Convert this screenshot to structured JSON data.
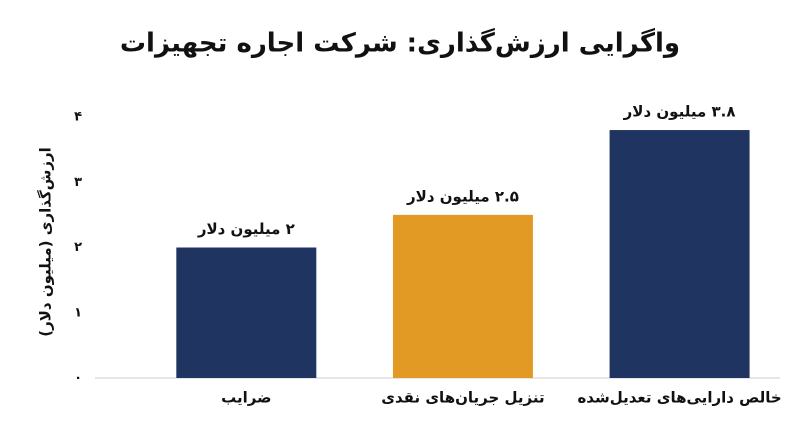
{
  "chart_data": {
    "type": "bar",
    "title": "واگرایی ارزش‌گذاری: شرکت اجاره تجهیزات",
    "y_label": "ارزش‌گذاری (میلیون دلار)",
    "categories": [
      "ضرایب",
      "تنزیل جریان‌های نقدی",
      "خالص دارایی‌های تعدیل‌شده"
    ],
    "values": [
      2,
      2.5,
      3.8
    ],
    "value_labels": [
      "۲ میلیون دلار",
      "۲.۵ میلیون دلار",
      "۳.۸ میلیون دلار"
    ],
    "colors": [
      "#1f3461",
      "#e39a25",
      "#1f3461"
    ],
    "ylim": [
      0,
      4
    ],
    "yticks": [
      {
        "value": 0,
        "label": "۰"
      },
      {
        "value": 1,
        "label": "۱"
      },
      {
        "value": 2,
        "label": "۲"
      },
      {
        "value": 3,
        "label": "۳"
      },
      {
        "value": 4,
        "label": "۴"
      }
    ]
  }
}
